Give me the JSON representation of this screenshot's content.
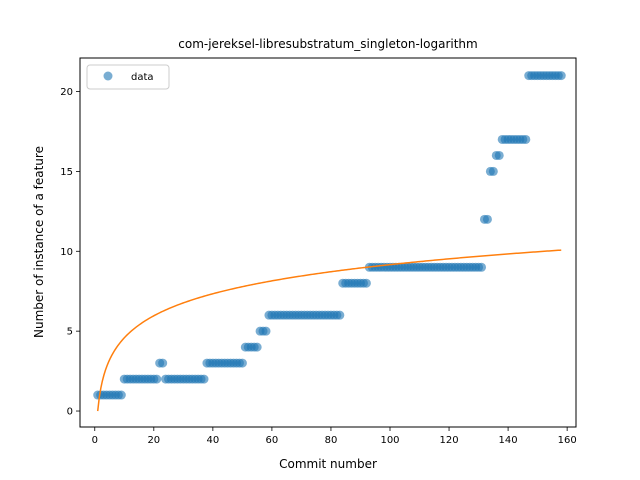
{
  "chart_data": {
    "type": "scatter",
    "title": "com-jereksel-libresubstratum_singleton-logarithm",
    "xlabel": "Commit number",
    "ylabel": "Number of instance of a feature",
    "xlim": [
      -5,
      163
    ],
    "ylim": [
      -1,
      22.1
    ],
    "xticks": [
      0,
      20,
      40,
      60,
      80,
      100,
      120,
      140,
      160
    ],
    "yticks": [
      0,
      5,
      10,
      15,
      20
    ],
    "grid": false,
    "legend": {
      "placement": "top-left",
      "entries": [
        "data"
      ]
    },
    "colors": {
      "data": "#1f77b4",
      "fit": "#ff7f0e"
    },
    "series": [
      {
        "name": "data",
        "kind": "scatter",
        "segments": [
          {
            "x_start": 1,
            "x_end": 9,
            "y": 1
          },
          {
            "x_start": 10,
            "x_end": 21,
            "y": 2
          },
          {
            "x_start": 22,
            "x_end": 23,
            "y": 3
          },
          {
            "x_start": 24,
            "x_end": 37,
            "y": 2
          },
          {
            "x_start": 38,
            "x_end": 50,
            "y": 3
          },
          {
            "x_start": 51,
            "x_end": 55,
            "y": 4
          },
          {
            "x_start": 56,
            "x_end": 58,
            "y": 5
          },
          {
            "x_start": 59,
            "x_end": 83,
            "y": 6
          },
          {
            "x_start": 84,
            "x_end": 92,
            "y": 8
          },
          {
            "x_start": 93,
            "x_end": 131,
            "y": 9
          },
          {
            "x_start": 132,
            "x_end": 133,
            "y": 12
          },
          {
            "x_start": 134,
            "x_end": 135,
            "y": 15
          },
          {
            "x_start": 136,
            "x_end": 137,
            "y": 16
          },
          {
            "x_start": 138,
            "x_end": 146,
            "y": 17
          },
          {
            "x_start": 147,
            "x_end": 158,
            "y": 21
          }
        ]
      },
      {
        "kind": "line",
        "model": "a*ln(x)+b",
        "a": 1.99,
        "b": 0.0,
        "x_start": 1,
        "x_end": 158
      }
    ]
  }
}
